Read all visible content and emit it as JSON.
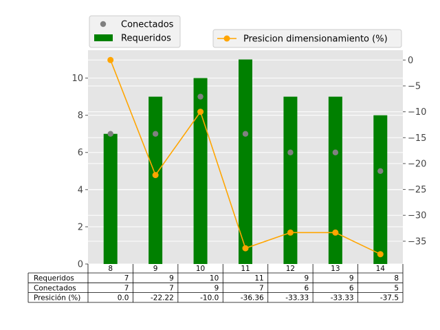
{
  "chart_data": {
    "type": "bar",
    "categories": [
      "8",
      "9",
      "10",
      "11",
      "12",
      "13",
      "14"
    ],
    "series": [
      {
        "name": "Requeridos",
        "kind": "bar",
        "axis": "left",
        "color": "#008000",
        "values": [
          7,
          9,
          10,
          11,
          9,
          9,
          8
        ]
      },
      {
        "name": "Conectados",
        "kind": "scatter",
        "axis": "left",
        "color": "#808080",
        "values": [
          7,
          7,
          9,
          7,
          6,
          6,
          5
        ]
      },
      {
        "name": "Presicion dimensionamiento (%)",
        "kind": "line",
        "axis": "right",
        "color": "#FFA500",
        "values": [
          0.0,
          -22.22,
          -10.0,
          -36.36,
          -33.33,
          -33.33,
          -37.5
        ]
      }
    ],
    "ylim": [
      0,
      11.5
    ],
    "yticks": [
      0,
      2,
      4,
      6,
      8,
      10
    ],
    "y2lim": [
      -39.4,
      1.9
    ],
    "y2ticks": [
      0,
      -5,
      -10,
      -15,
      -20,
      -25,
      -30,
      -35
    ],
    "grid": true,
    "background": "#E5E5E5",
    "legend_left": [
      "Conectados",
      "Requeridos"
    ],
    "legend_right": [
      "Presicion dimensionamiento (%)"
    ],
    "table": {
      "row_labels": [
        "Requeridos",
        "Conectados",
        "Presición (%)"
      ],
      "rows": [
        [
          "7",
          "9",
          "10",
          "11",
          "9",
          "9",
          "8"
        ],
        [
          "7",
          "7",
          "9",
          "7",
          "6",
          "6",
          "5"
        ],
        [
          "0.0",
          "-22.22",
          "-10.0",
          "-36.36",
          "-33.33",
          "-33.33",
          "-37.5"
        ]
      ]
    }
  }
}
